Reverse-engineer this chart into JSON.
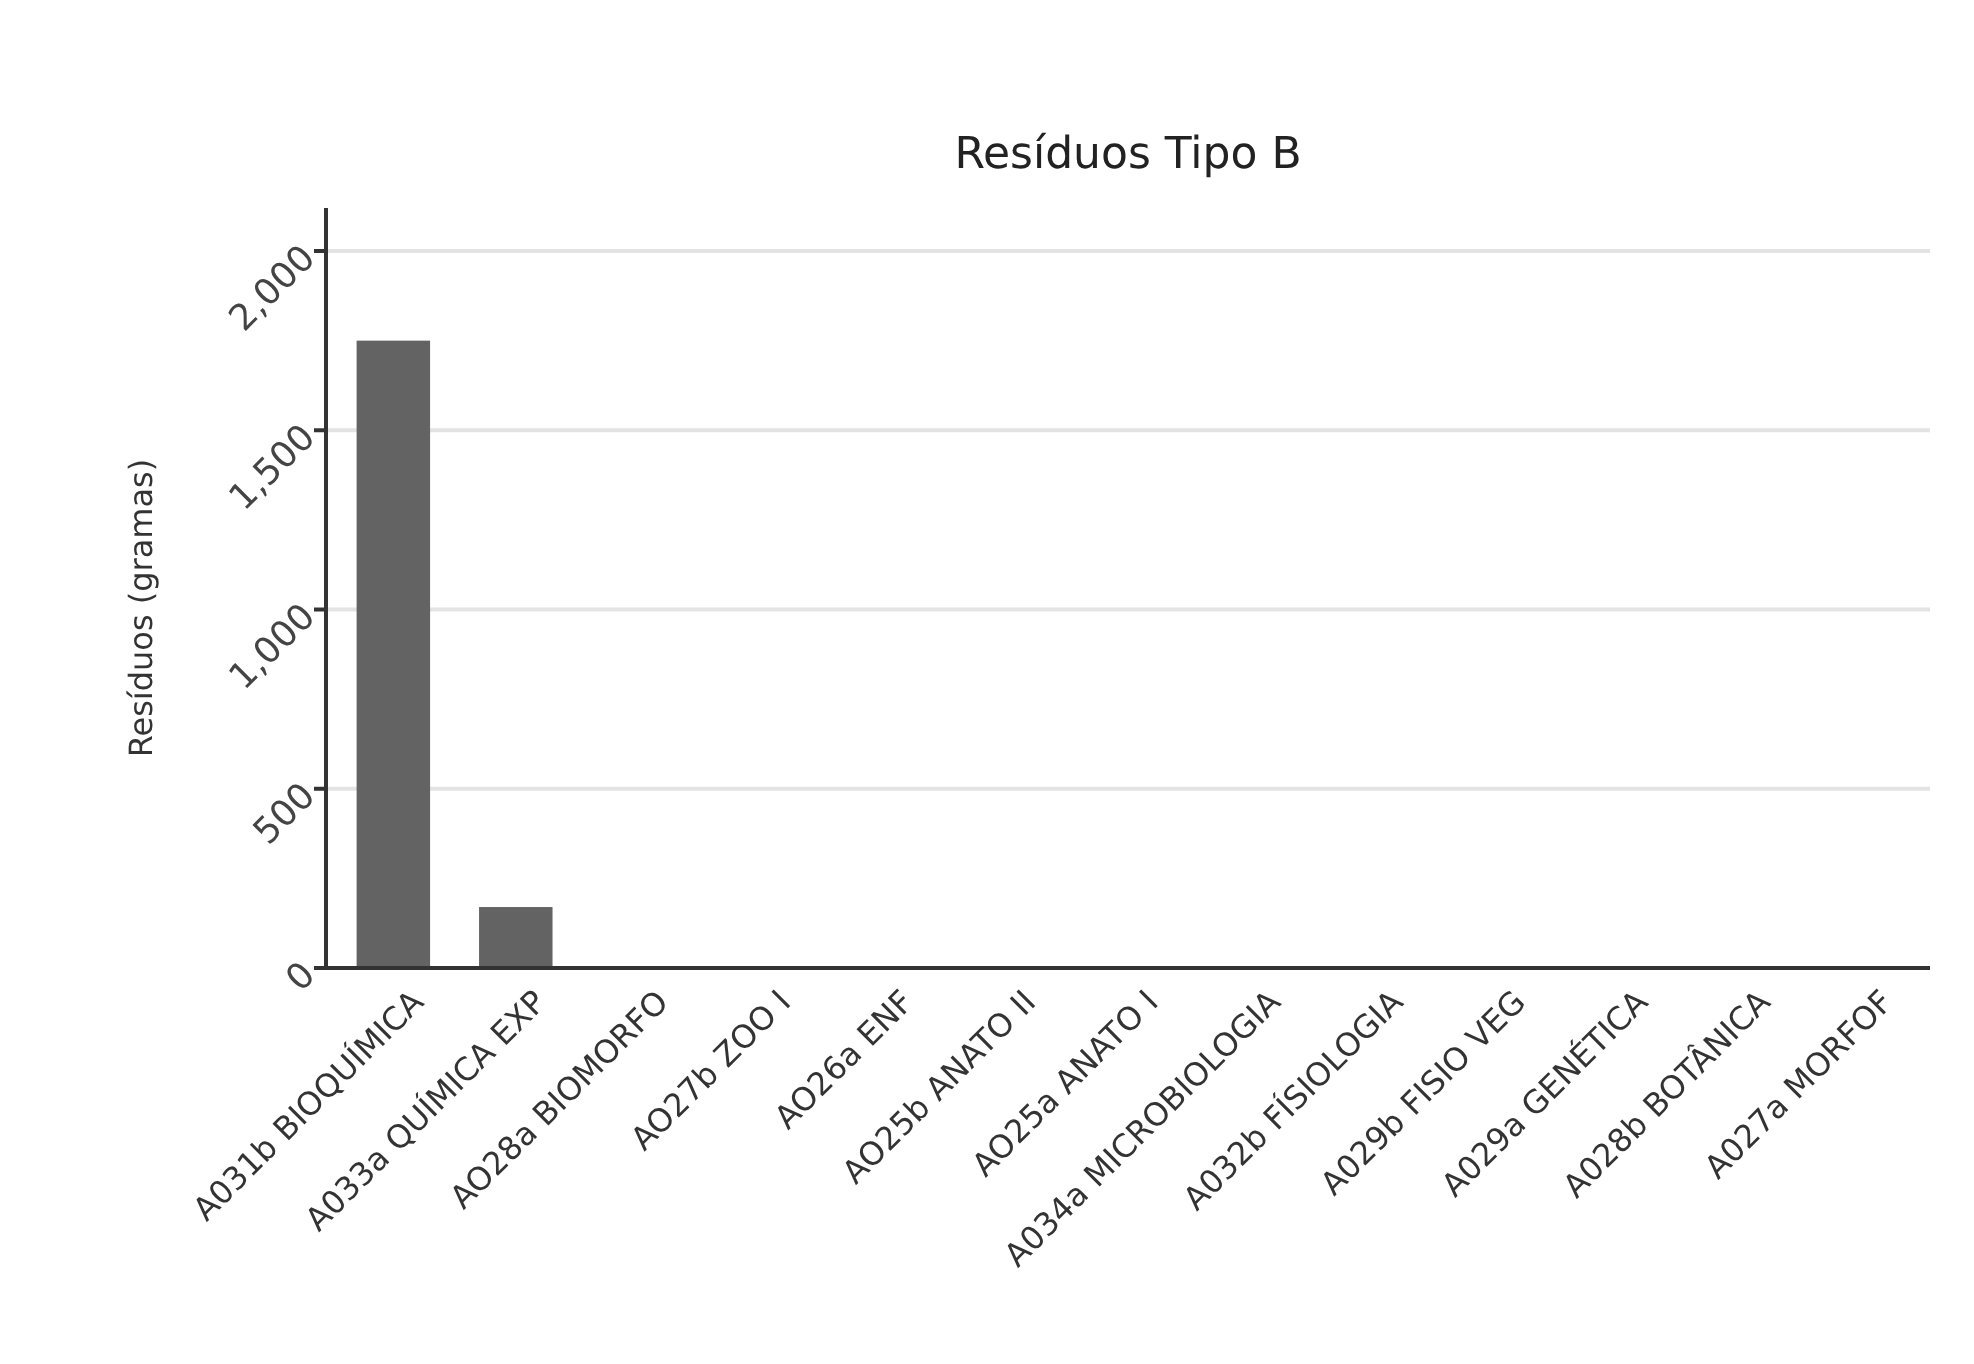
{
  "chart_data": {
    "type": "bar",
    "title": "Resíduos Tipo B",
    "ylabel": "Resíduos (gramas)",
    "categories": [
      "A031b BIOQUÍMICA",
      "A033a QUÍMICA EXP",
      "AO28a BIOMORFO",
      "AO27b ZOO I",
      "AO26a ENF",
      "AO25b ANATO II",
      "AO25a ANATO I",
      "A034a MICROBIOLOGIA",
      "A032b FÍSIOLOGIA",
      "A029b FISIO VEG",
      "A029a GENÉTICA",
      "A028b BOTÂNICA",
      "A027a MORFOF"
    ],
    "values": [
      1750,
      170,
      0,
      0,
      0,
      0,
      0,
      0,
      0,
      0,
      0,
      0,
      0
    ],
    "color": "#636363",
    "ylim": [
      0,
      2120
    ],
    "yticks": [
      {
        "value": 0,
        "label": "0"
      },
      {
        "value": 500,
        "label": "500"
      },
      {
        "value": 1000,
        "label": "1,000"
      },
      {
        "value": 1500,
        "label": "1,500"
      },
      {
        "value": 2000,
        "label": "2,000"
      }
    ],
    "grid": "y"
  }
}
